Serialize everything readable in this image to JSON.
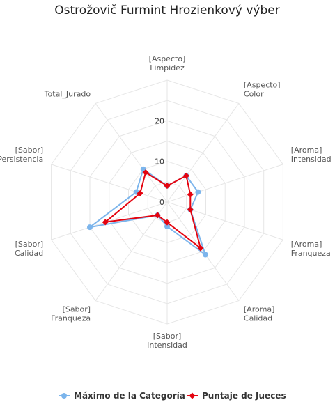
{
  "chart_data": {
    "type": "radar",
    "title": "Ostrožovič Furmint Hrozienkový výber",
    "categories": [
      [
        "[Aspecto]",
        "Limpidez"
      ],
      [
        "[Aspecto]",
        "Color"
      ],
      [
        "[Aroma]",
        "Intensidad"
      ],
      [
        "[Aroma]",
        "Franqueza"
      ],
      [
        "[Aroma]",
        "Calidad"
      ],
      [
        "[Sabor]",
        "Intensidad"
      ],
      [
        "[Sabor]",
        "Franqueza"
      ],
      [
        "[Sabor]",
        "Calidad"
      ],
      [
        "[Sabor]",
        "Persistencia"
      ],
      [
        "Total_Jurado"
      ]
    ],
    "ylim": [
      0,
      30
    ],
    "ticks": [
      0,
      10,
      20
    ],
    "grid": true,
    "legend_position": "bottom",
    "series": [
      {
        "name": "Máximo de la Categoría",
        "color": "#7cb5ec",
        "values": [
          4,
          8,
          8,
          6,
          16,
          6,
          4,
          20,
          8,
          10
        ]
      },
      {
        "name": "Puntaje de Jueces",
        "color": "#e4030f",
        "values": [
          4,
          8,
          6,
          6,
          14,
          5,
          4,
          16,
          7,
          9
        ]
      }
    ]
  }
}
